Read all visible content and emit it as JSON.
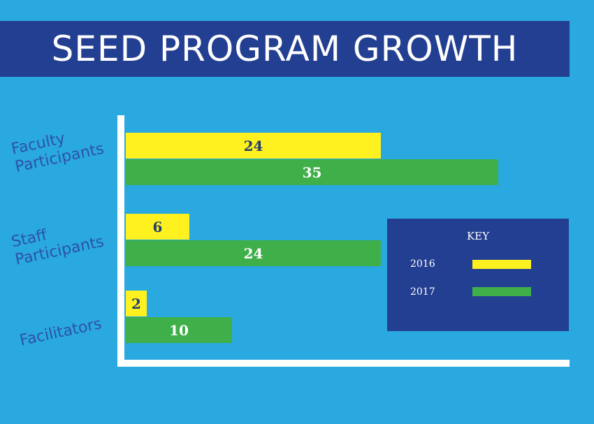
{
  "title": "SEED PROGRAM GROWTH",
  "colors": {
    "background": "#2aa8e0",
    "banner": "#233f91",
    "series_2016": "#fff01f",
    "series_2017": "#3faf4a",
    "label_2016": "#233f6e",
    "label_2017": "#ffffff",
    "category_text": "#2c53a8"
  },
  "chart_data": {
    "type": "bar",
    "orientation": "horizontal",
    "title": "SEED PROGRAM GROWTH",
    "categories": [
      "Faculty\nParticipants",
      "Staff\nParticipants",
      "Facilitators"
    ],
    "series": [
      {
        "name": "2016",
        "values": [
          24,
          6,
          2
        ]
      },
      {
        "name": "2017",
        "values": [
          35,
          24,
          10
        ]
      }
    ],
    "xlim": [
      0,
      42
    ],
    "grid": false,
    "legend": {
      "title": "KEY",
      "placement": "right",
      "entries": [
        "2016",
        "2017"
      ]
    }
  }
}
